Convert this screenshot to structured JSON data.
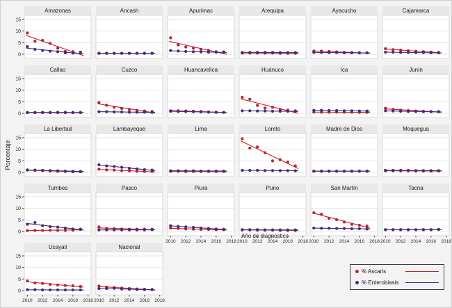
{
  "figure": {
    "ylabel": "Porcentaje",
    "xlabel": "Año de diagnóstico",
    "colors": {
      "ascaris": "#cb2026",
      "enterobiasis": "#472a86",
      "grid": "#e4e4e6",
      "plot_bg": "#ffffff",
      "panel_border": "#d8d8da",
      "strip_bg": "#e8e8e8",
      "background": "#f3f3f4"
    },
    "legend": {
      "items": [
        {
          "label": "% Ascaris",
          "color": "#cb2026"
        },
        {
          "label": "% Enterobiasis",
          "color": "#472a86"
        }
      ]
    }
  },
  "chart_data": {
    "type": "scatter",
    "title": "",
    "xlabel": "Año de diagnóstico",
    "ylabel": "Porcentaje",
    "x": [
      2010,
      2011,
      2012,
      2013,
      2014,
      2015,
      2016,
      2017
    ],
    "x_ticks": [
      2010,
      2012,
      2014,
      2016,
      2018
    ],
    "y_ticks": [
      0,
      5,
      10,
      15
    ],
    "ylim": [
      0,
      15
    ],
    "grid": true,
    "legend_position": "bottom-right",
    "series_names": [
      "% Ascaris",
      "% Enterobiasis"
    ],
    "trend": "linear-fit-per-series",
    "panels": [
      {
        "title": "Amazonas",
        "show_y": true,
        "show_x": false,
        "ascaris": [
          9.2,
          5.6,
          6.0,
          4.7,
          2.6,
          1.2,
          1.1,
          0.9
        ],
        "enterobiasis": [
          3.3,
          2.1,
          1.6,
          1.3,
          1.1,
          0.6,
          0.5,
          0.8
        ]
      },
      {
        "title": "Ancash",
        "show_y": false,
        "show_x": false,
        "ascaris": [
          0.4,
          0.4,
          0.4,
          0.4,
          0.4,
          0.4,
          0.4,
          0.4
        ],
        "enterobiasis": [
          0.4,
          0.4,
          0.4,
          0.4,
          0.4,
          0.4,
          0.4,
          0.4
        ]
      },
      {
        "title": "Apurímac",
        "show_y": false,
        "show_x": false,
        "ascaris": [
          7.1,
          4.0,
          3.1,
          2.6,
          2.1,
          1.6,
          1.1,
          1.0
        ],
        "enterobiasis": [
          1.6,
          1.4,
          1.2,
          1.1,
          1.0,
          0.9,
          0.9,
          0.9
        ]
      },
      {
        "title": "Arequipa",
        "show_y": false,
        "show_x": false,
        "ascaris": [
          0.5,
          0.5,
          0.5,
          0.5,
          0.5,
          0.4,
          0.4,
          0.4
        ],
        "enterobiasis": [
          0.8,
          0.8,
          0.8,
          0.8,
          0.8,
          0.7,
          0.7,
          0.7
        ]
      },
      {
        "title": "Ayacucho",
        "show_y": false,
        "show_x": false,
        "ascaris": [
          1.4,
          1.4,
          1.2,
          1.0,
          0.8,
          0.7,
          0.6,
          0.6
        ],
        "enterobiasis": [
          0.8,
          0.8,
          0.7,
          0.7,
          0.6,
          0.6,
          0.6,
          0.6
        ]
      },
      {
        "title": "Cajamarca",
        "show_y": false,
        "show_x": false,
        "ascaris": [
          2.4,
          2.0,
          1.8,
          1.5,
          1.3,
          1.1,
          0.9,
          0.8
        ],
        "enterobiasis": [
          0.9,
          0.9,
          0.8,
          0.8,
          0.7,
          0.7,
          0.6,
          0.6
        ]
      },
      {
        "title": "Callao",
        "show_y": true,
        "show_x": false,
        "ascaris": [
          0.3,
          0.3,
          0.3,
          0.3,
          0.3,
          0.3,
          0.3,
          0.3
        ],
        "enterobiasis": [
          0.4,
          0.4,
          0.4,
          0.4,
          0.4,
          0.4,
          0.4,
          0.4
        ]
      },
      {
        "title": "Cuzco",
        "show_y": false,
        "show_x": false,
        "ascaris": [
          4.7,
          3.5,
          2.6,
          2.1,
          1.7,
          1.3,
          1.0,
          0.8
        ],
        "enterobiasis": [
          0.7,
          0.7,
          0.6,
          0.6,
          0.5,
          0.5,
          0.5,
          0.4
        ]
      },
      {
        "title": "Huancavelica",
        "show_y": false,
        "show_x": false,
        "ascaris": [
          1.1,
          1.1,
          1.0,
          0.9,
          0.8,
          0.6,
          0.5,
          0.4
        ],
        "enterobiasis": [
          0.9,
          0.8,
          0.8,
          0.7,
          0.6,
          0.5,
          0.4,
          0.4
        ]
      },
      {
        "title": "Huánuco",
        "show_y": false,
        "show_x": false,
        "ascaris": [
          6.9,
          6.1,
          3.4,
          2.3,
          2.6,
          1.7,
          1.4,
          1.1
        ],
        "enterobiasis": [
          1.1,
          1.1,
          1.0,
          1.0,
          0.9,
          0.9,
          0.9,
          0.9
        ]
      },
      {
        "title": "Ica",
        "show_y": false,
        "show_x": false,
        "ascaris": [
          0.5,
          0.5,
          0.5,
          0.5,
          0.5,
          0.5,
          0.4,
          0.4
        ],
        "enterobiasis": [
          1.3,
          1.3,
          1.2,
          1.2,
          1.1,
          1.1,
          1.0,
          1.0
        ]
      },
      {
        "title": "Junín",
        "show_y": false,
        "show_x": false,
        "ascaris": [
          2.2,
          1.7,
          1.4,
          1.2,
          1.0,
          0.9,
          0.8,
          0.7
        ],
        "enterobiasis": [
          1.1,
          1.0,
          0.9,
          0.8,
          0.8,
          0.7,
          0.7,
          0.7
        ]
      },
      {
        "title": "La Libertad",
        "show_y": true,
        "show_x": false,
        "ascaris": [
          1.0,
          0.9,
          0.8,
          0.6,
          0.5,
          0.4,
          0.3,
          0.3
        ],
        "enterobiasis": [
          1.1,
          1.0,
          0.9,
          0.8,
          0.7,
          0.6,
          0.5,
          0.5
        ]
      },
      {
        "title": "Lambayeque",
        "show_y": false,
        "show_x": false,
        "ascaris": [
          1.4,
          1.1,
          1.0,
          0.8,
          0.7,
          0.5,
          0.4,
          0.4
        ],
        "enterobiasis": [
          3.3,
          2.8,
          2.6,
          2.2,
          1.8,
          1.5,
          1.2,
          1.0
        ]
      },
      {
        "title": "Lima",
        "show_y": false,
        "show_x": false,
        "ascaris": [
          0.5,
          0.5,
          0.4,
          0.4,
          0.4,
          0.4,
          0.4,
          0.4
        ],
        "enterobiasis": [
          0.7,
          0.7,
          0.7,
          0.7,
          0.6,
          0.6,
          0.6,
          0.6
        ]
      },
      {
        "title": "Loreto",
        "show_y": false,
        "show_x": false,
        "ascaris": [
          14.5,
          10.5,
          11.0,
          8.5,
          5.0,
          5.5,
          4.5,
          2.8
        ],
        "enterobiasis": [
          0.9,
          0.9,
          0.9,
          0.8,
          0.8,
          0.8,
          0.8,
          0.7
        ]
      },
      {
        "title": "Madre de Dios",
        "show_y": false,
        "show_x": false,
        "ascaris": [
          0.5,
          0.5,
          0.5,
          0.5,
          0.5,
          0.5,
          0.5,
          0.5
        ],
        "enterobiasis": [
          0.6,
          0.6,
          0.6,
          0.6,
          0.6,
          0.6,
          0.6,
          0.6
        ]
      },
      {
        "title": "Moquegua",
        "show_y": false,
        "show_x": false,
        "ascaris": [
          0.7,
          0.7,
          0.7,
          0.7,
          0.6,
          0.6,
          0.6,
          0.6
        ],
        "enterobiasis": [
          0.9,
          0.9,
          0.9,
          0.9,
          0.8,
          0.8,
          0.8,
          0.8
        ]
      },
      {
        "title": "Tumbes",
        "show_y": true,
        "show_x": false,
        "ascaris": [
          0.4,
          0.5,
          0.5,
          0.6,
          0.5,
          0.5,
          0.6,
          0.9
        ],
        "enterobiasis": [
          3.1,
          3.9,
          2.5,
          2.1,
          1.9,
          1.5,
          1.1,
          1.0
        ]
      },
      {
        "title": "Pasco",
        "show_y": false,
        "show_x": false,
        "ascaris": [
          2.0,
          1.3,
          1.2,
          1.1,
          1.0,
          1.0,
          1.0,
          1.0
        ],
        "enterobiasis": [
          0.7,
          0.7,
          0.7,
          0.7,
          0.7,
          0.7,
          0.7,
          0.8
        ]
      },
      {
        "title": "Piura",
        "show_y": false,
        "show_x": true,
        "ascaris": [
          1.5,
          1.3,
          1.1,
          1.0,
          0.9,
          0.9,
          0.8,
          0.8
        ],
        "enterobiasis": [
          2.5,
          2.2,
          2.0,
          1.8,
          1.5,
          1.3,
          1.1,
          1.0
        ]
      },
      {
        "title": "Puno",
        "show_y": false,
        "show_x": true,
        "ascaris": [
          0.7,
          0.7,
          0.6,
          0.6,
          0.6,
          0.5,
          0.5,
          0.5
        ],
        "enterobiasis": [
          0.8,
          0.8,
          0.8,
          0.7,
          0.7,
          0.7,
          0.7,
          0.7
        ]
      },
      {
        "title": "San Martín",
        "show_y": false,
        "show_x": true,
        "ascaris": [
          8.1,
          7.5,
          5.7,
          5.1,
          4.1,
          3.1,
          2.7,
          2.4
        ],
        "enterobiasis": [
          1.5,
          1.4,
          1.4,
          1.3,
          1.3,
          1.2,
          1.2,
          1.1
        ]
      },
      {
        "title": "Tacna",
        "show_y": false,
        "show_x": true,
        "ascaris": [
          0.8,
          0.8,
          0.8,
          0.8,
          0.8,
          0.8,
          0.8,
          0.9
        ],
        "enterobiasis": [
          0.8,
          0.8,
          0.8,
          0.8,
          0.8,
          0.8,
          0.8,
          0.9
        ]
      },
      {
        "title": "Ucayali",
        "show_y": true,
        "show_x": true,
        "ascaris": [
          4.2,
          3.3,
          3.1,
          2.7,
          2.4,
          2.2,
          2.1,
          1.8
        ],
        "enterobiasis": [
          0.4,
          0.4,
          0.3,
          0.3,
          0.3,
          0.3,
          0.3,
          0.3
        ]
      },
      {
        "title": "Nacional",
        "show_y": false,
        "show_x": true,
        "ascaris": [
          2.0,
          1.5,
          1.3,
          1.1,
          0.9,
          0.7,
          0.6,
          0.5
        ],
        "enterobiasis": [
          0.9,
          0.9,
          1.0,
          0.7,
          0.6,
          0.5,
          0.4,
          0.4
        ]
      }
    ]
  }
}
